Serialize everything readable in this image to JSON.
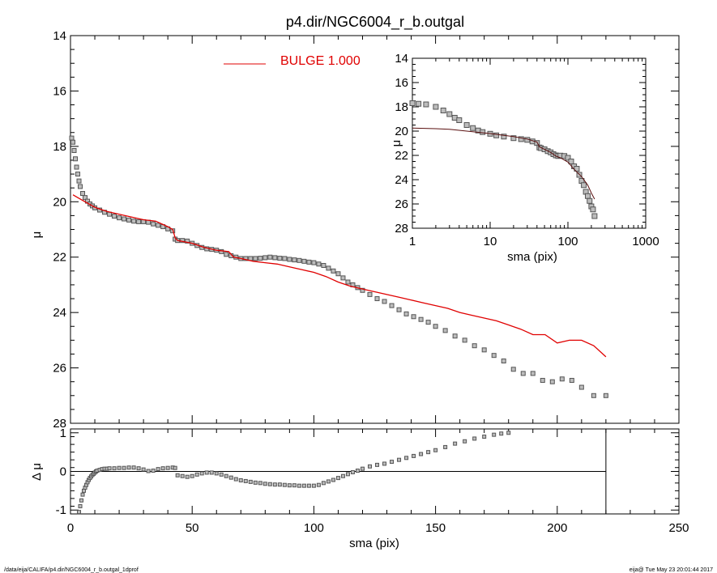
{
  "title": "p4.dir/NGC6004_r_b.outgal",
  "footer_left": "/data/eija/CALIFA/p4.dir/NGC6004_r_b.outgal_1dprof",
  "footer_right": "eija@  Tue May 23 20:01:44 2017",
  "colors": {
    "model": "#e00000",
    "data": "#555555",
    "axes": "#000000"
  },
  "chart_data": [
    {
      "id": "main",
      "type": "scatter",
      "xlabel": "sma (pix)",
      "ylabel": "μ",
      "xlim": [
        0,
        250
      ],
      "ylim": [
        28,
        14
      ],
      "y_inverted": true,
      "x_ticks": [
        0,
        50,
        100,
        150,
        200,
        250
      ],
      "y_ticks": [
        14,
        16,
        18,
        20,
        22,
        24,
        26,
        28
      ],
      "legend": {
        "label": "BULGE  1.000",
        "position": "top-center"
      },
      "series": [
        {
          "name": "BULGE  1.000",
          "kind": "line",
          "x": [
            1,
            3,
            6,
            10,
            15,
            20,
            25,
            30,
            35,
            40,
            42,
            43,
            44,
            50,
            55,
            60,
            65,
            67,
            70,
            75,
            80,
            85,
            90,
            95,
            100,
            105,
            110,
            115,
            120,
            125,
            130,
            135,
            140,
            145,
            150,
            155,
            160,
            165,
            170,
            175,
            180,
            185,
            190,
            195,
            200,
            205,
            210,
            215,
            220
          ],
          "y": [
            19.75,
            19.85,
            20.0,
            20.2,
            20.35,
            20.45,
            20.55,
            20.65,
            20.7,
            20.9,
            21.0,
            21.3,
            21.4,
            21.5,
            21.65,
            21.75,
            21.8,
            22.0,
            22.05,
            22.15,
            22.2,
            22.25,
            22.35,
            22.45,
            22.55,
            22.7,
            22.9,
            23.05,
            23.15,
            23.25,
            23.35,
            23.45,
            23.55,
            23.65,
            23.75,
            23.85,
            24.0,
            24.1,
            24.2,
            24.3,
            24.45,
            24.6,
            24.8,
            24.8,
            25.1,
            25.0,
            25.0,
            25.2,
            25.6
          ]
        },
        {
          "name": "",
          "kind": "points",
          "x": [
            0.5,
            1,
            1.5,
            2,
            2.5,
            3,
            3.5,
            4,
            5,
            6,
            7,
            8,
            9,
            10,
            12,
            14,
            16,
            18,
            20,
            22,
            24,
            26,
            28,
            30,
            32,
            34,
            36,
            38,
            40,
            42,
            43,
            44,
            46,
            48,
            50,
            52,
            54,
            56,
            58,
            60,
            62,
            64,
            66,
            68,
            70,
            72,
            74,
            76,
            78,
            80,
            82,
            84,
            86,
            88,
            90,
            92,
            94,
            96,
            98,
            100,
            102,
            104,
            106,
            108,
            110,
            112,
            114,
            116,
            118,
            120,
            123,
            126,
            129,
            132,
            135,
            138,
            141,
            144,
            147,
            150,
            154,
            158,
            162,
            166,
            170,
            174,
            178,
            182,
            186,
            190,
            194,
            198,
            202,
            206,
            210,
            215,
            220
          ],
          "y": [
            17.7,
            17.85,
            18.15,
            18.45,
            18.75,
            19.0,
            19.25,
            19.45,
            19.7,
            19.85,
            19.98,
            20.08,
            20.15,
            20.22,
            20.3,
            20.38,
            20.45,
            20.52,
            20.58,
            20.62,
            20.66,
            20.7,
            20.72,
            20.72,
            20.74,
            20.8,
            20.85,
            20.9,
            20.98,
            21.05,
            21.35,
            21.4,
            21.4,
            21.42,
            21.5,
            21.58,
            21.65,
            21.7,
            21.72,
            21.75,
            21.8,
            21.9,
            21.95,
            22.0,
            22.05,
            22.05,
            22.05,
            22.05,
            22.04,
            22.02,
            22.0,
            22.02,
            22.04,
            22.05,
            22.08,
            22.1,
            22.12,
            22.15,
            22.18,
            22.2,
            22.25,
            22.3,
            22.4,
            22.5,
            22.6,
            22.75,
            22.9,
            23.0,
            23.1,
            23.2,
            23.35,
            23.5,
            23.6,
            23.75,
            23.9,
            24.05,
            24.15,
            24.25,
            24.35,
            24.5,
            24.65,
            24.85,
            25.0,
            25.2,
            25.35,
            25.55,
            25.75,
            26.05,
            26.2,
            26.2,
            26.45,
            26.5,
            26.4,
            26.45,
            26.7,
            27.0,
            27.0
          ]
        }
      ]
    },
    {
      "id": "inset",
      "type": "scatter",
      "xlabel": "sma (pix)",
      "ylabel": "μ",
      "xlim": [
        1,
        1000
      ],
      "x_scale": "log",
      "ylim": [
        28,
        14
      ],
      "y_inverted": true,
      "x_ticks": [
        1,
        10,
        100,
        1000
      ],
      "y_ticks": [
        14,
        16,
        18,
        20,
        22,
        24,
        26,
        28
      ],
      "series": [
        {
          "name": "",
          "kind": "line",
          "x": [
            1,
            2,
            3,
            5,
            10,
            15,
            20,
            30,
            40,
            43,
            50,
            60,
            70,
            80,
            100,
            120,
            150,
            180,
            200,
            220
          ],
          "y": [
            19.75,
            19.8,
            19.85,
            20.0,
            20.2,
            20.35,
            20.45,
            20.65,
            20.9,
            21.3,
            21.5,
            21.75,
            22.05,
            22.2,
            22.55,
            23.15,
            23.75,
            24.45,
            25.1,
            25.6
          ]
        },
        {
          "name": "",
          "kind": "points",
          "x": [
            1,
            1.2,
            1.5,
            2,
            2.5,
            3,
            3.5,
            4,
            5,
            6,
            7,
            8,
            10,
            12,
            15,
            20,
            25,
            30,
            35,
            40,
            43,
            45,
            50,
            55,
            60,
            65,
            70,
            75,
            80,
            90,
            100,
            110,
            120,
            130,
            140,
            150,
            160,
            170,
            180,
            190,
            200,
            210,
            220
          ],
          "y": [
            17.7,
            17.75,
            17.8,
            18.0,
            18.3,
            18.6,
            18.9,
            19.1,
            19.5,
            19.75,
            19.95,
            20.08,
            20.22,
            20.35,
            20.45,
            20.58,
            20.66,
            20.72,
            20.85,
            20.98,
            21.35,
            21.4,
            21.5,
            21.65,
            21.75,
            21.9,
            22.0,
            22.05,
            22.02,
            22.05,
            22.2,
            22.5,
            22.9,
            23.1,
            23.6,
            24.1,
            24.45,
            25.0,
            25.35,
            25.75,
            26.2,
            26.45,
            27.0
          ]
        }
      ]
    },
    {
      "id": "residual",
      "type": "scatter",
      "xlabel": "sma (pix)",
      "ylabel": "Δ μ",
      "xlim": [
        0,
        250
      ],
      "ylim": [
        -1.1,
        1.1
      ],
      "x_ticks": [
        0,
        50,
        100,
        150,
        200,
        250
      ],
      "y_ticks": [
        -1,
        0,
        1
      ],
      "zero_line_end": 220,
      "vertical_line_at": 220,
      "series": [
        {
          "name": "",
          "kind": "points",
          "x": [
            3.5,
            4,
            4.5,
            5,
            5.5,
            6,
            6.5,
            7,
            7.5,
            8,
            8.5,
            9,
            9.5,
            10,
            10.5,
            11,
            12,
            13,
            14,
            15,
            16,
            18,
            20,
            22,
            24,
            26,
            28,
            30,
            32,
            34,
            36,
            38,
            40,
            42,
            43,
            44,
            46,
            48,
            50,
            52,
            54,
            56,
            58,
            60,
            62,
            64,
            66,
            68,
            70,
            72,
            74,
            76,
            78,
            80,
            82,
            84,
            86,
            88,
            90,
            92,
            94,
            96,
            98,
            100,
            102,
            104,
            106,
            108,
            110,
            112,
            114,
            116,
            118,
            120,
            123,
            126,
            129,
            132,
            135,
            138,
            141,
            144,
            147,
            150,
            154,
            158,
            162,
            166,
            170,
            174,
            177,
            180
          ],
          "y": [
            -1.05,
            -0.9,
            -0.75,
            -0.6,
            -0.5,
            -0.42,
            -0.35,
            -0.28,
            -0.22,
            -0.17,
            -0.13,
            -0.09,
            -0.06,
            -0.03,
            0.0,
            0.02,
            0.04,
            0.06,
            0.07,
            0.07,
            0.08,
            0.08,
            0.09,
            0.09,
            0.1,
            0.1,
            0.08,
            0.05,
            0.01,
            0.02,
            0.06,
            0.08,
            0.09,
            0.1,
            0.09,
            -0.1,
            -0.12,
            -0.14,
            -0.12,
            -0.08,
            -0.05,
            -0.03,
            -0.03,
            -0.05,
            -0.08,
            -0.12,
            -0.16,
            -0.2,
            -0.23,
            -0.25,
            -0.27,
            -0.29,
            -0.3,
            -0.32,
            -0.33,
            -0.34,
            -0.34,
            -0.35,
            -0.36,
            -0.36,
            -0.37,
            -0.37,
            -0.37,
            -0.37,
            -0.35,
            -0.3,
            -0.26,
            -0.22,
            -0.17,
            -0.12,
            -0.07,
            -0.02,
            0.02,
            0.07,
            0.13,
            0.17,
            0.2,
            0.25,
            0.3,
            0.35,
            0.4,
            0.45,
            0.5,
            0.55,
            0.63,
            0.72,
            0.78,
            0.85,
            0.9,
            0.95,
            0.98,
            1.0
          ]
        }
      ]
    }
  ]
}
